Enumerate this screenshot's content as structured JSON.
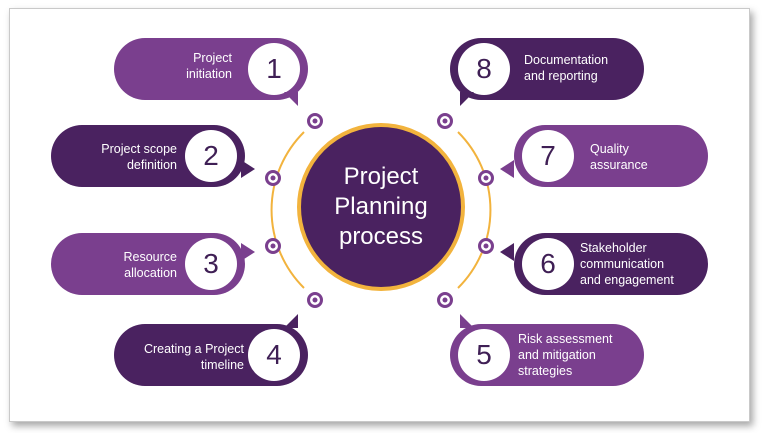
{
  "center": {
    "title": "Project\nPlanning\nprocess"
  },
  "steps": [
    {
      "number": "1",
      "label": "Project\ninitiation",
      "color": "#7a3f8e"
    },
    {
      "number": "2",
      "label": "Project scope\ndefinition",
      "color": "#4a2260"
    },
    {
      "number": "3",
      "label": "Resource\nallocation",
      "color": "#7a3f8e"
    },
    {
      "number": "4",
      "label": "Creating a Project\ntimeline",
      "color": "#4a2260"
    },
    {
      "number": "5",
      "label": "Risk assessment\nand mitigation\nstrategies",
      "color": "#7a3f8e"
    },
    {
      "number": "6",
      "label": "Stakeholder\ncommunication\nand engagement",
      "color": "#4a2260"
    },
    {
      "number": "7",
      "label": "Quality\nassurance",
      "color": "#7a3f8e"
    },
    {
      "number": "8",
      "label": "Documentation\nand reporting",
      "color": "#4a2260"
    }
  ],
  "colors": {
    "dark_purple": "#4a2260",
    "light_purple": "#7a3f8e",
    "accent_gold": "#f2b33d"
  }
}
